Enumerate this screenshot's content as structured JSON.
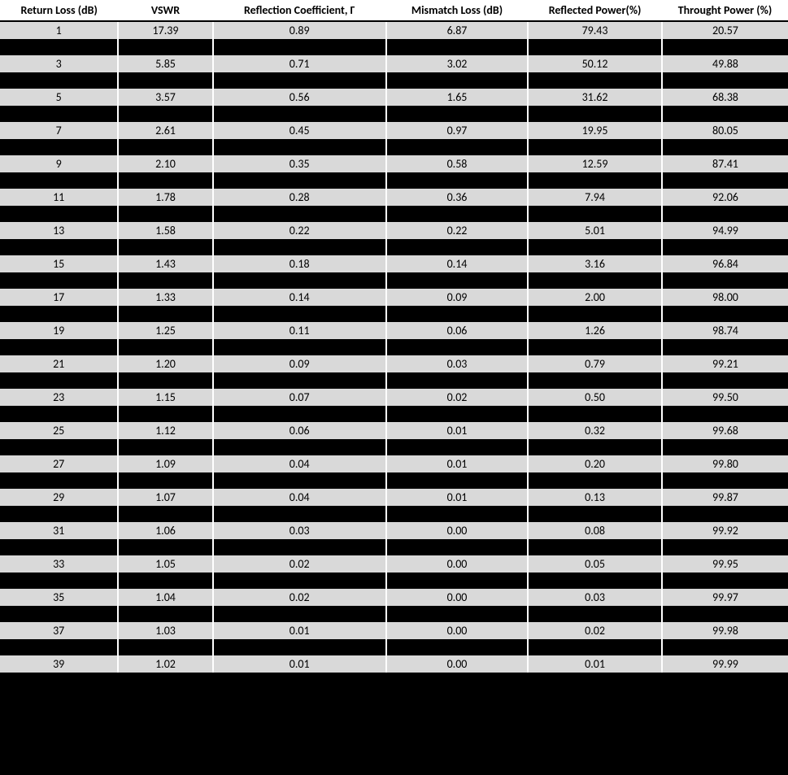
{
  "table": {
    "type": "table",
    "background_color": "#000000",
    "header_bg": "#ffffff",
    "row_bg": "#d9d9d9",
    "separator_color": "#ffffff",
    "text_color": "#000000",
    "font_family": "Calibri",
    "header_fontsize": 14,
    "cell_fontsize": 14,
    "columns": [
      "Return Loss (dB)",
      "VSWR",
      "Reflection Coefficient, Γ",
      "Mismatch Loss (dB)",
      "Reflected Power(%)",
      "Throught Power (%)"
    ],
    "column_widths_pct": [
      15,
      12,
      22,
      18,
      17,
      16
    ],
    "rows": [
      [
        "1",
        "17.39",
        "0.89",
        "6.87",
        "79.43",
        "20.57"
      ],
      [
        "3",
        "5.85",
        "0.71",
        "3.02",
        "50.12",
        "49.88"
      ],
      [
        "5",
        "3.57",
        "0.56",
        "1.65",
        "31.62",
        "68.38"
      ],
      [
        "7",
        "2.61",
        "0.45",
        "0.97",
        "19.95",
        "80.05"
      ],
      [
        "9",
        "2.10",
        "0.35",
        "0.58",
        "12.59",
        "87.41"
      ],
      [
        "11",
        "1.78",
        "0.28",
        "0.36",
        "7.94",
        "92.06"
      ],
      [
        "13",
        "1.58",
        "0.22",
        "0.22",
        "5.01",
        "94.99"
      ],
      [
        "15",
        "1.43",
        "0.18",
        "0.14",
        "3.16",
        "96.84"
      ],
      [
        "17",
        "1.33",
        "0.14",
        "0.09",
        "2.00",
        "98.00"
      ],
      [
        "19",
        "1.25",
        "0.11",
        "0.06",
        "1.26",
        "98.74"
      ],
      [
        "21",
        "1.20",
        "0.09",
        "0.03",
        "0.79",
        "99.21"
      ],
      [
        "23",
        "1.15",
        "0.07",
        "0.02",
        "0.50",
        "99.50"
      ],
      [
        "25",
        "1.12",
        "0.06",
        "0.01",
        "0.32",
        "99.68"
      ],
      [
        "27",
        "1.09",
        "0.04",
        "0.01",
        "0.20",
        "99.80"
      ],
      [
        "29",
        "1.07",
        "0.04",
        "0.01",
        "0.13",
        "99.87"
      ],
      [
        "31",
        "1.06",
        "0.03",
        "0.00",
        "0.08",
        "99.92"
      ],
      [
        "33",
        "1.05",
        "0.02",
        "0.00",
        "0.05",
        "99.95"
      ],
      [
        "35",
        "1.04",
        "0.02",
        "0.00",
        "0.03",
        "99.97"
      ],
      [
        "37",
        "1.03",
        "0.01",
        "0.00",
        "0.02",
        "99.98"
      ],
      [
        "39",
        "1.02",
        "0.01",
        "0.00",
        "0.01",
        "99.99"
      ]
    ]
  }
}
